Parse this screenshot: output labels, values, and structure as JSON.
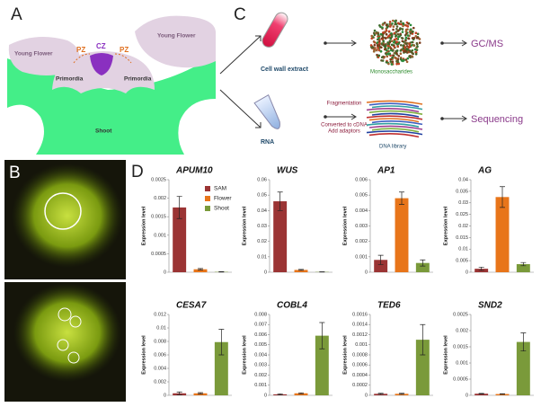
{
  "panels": {
    "a": "A",
    "b": "B",
    "c": "C",
    "d": "D"
  },
  "diagram_a": {
    "young_flower_left": "Young Flower",
    "young_flower_right": "Young Flower",
    "pz_left": "PZ",
    "pz_right": "PZ",
    "cz": "CZ",
    "primordia_left": "Primordia",
    "primordia_right": "Primordia",
    "shoot": "Shoot"
  },
  "diagram_c": {
    "cell_wall_extract": "Cell wall extract",
    "monosaccharides": "Monosaccharides",
    "gcms": "GC/MS",
    "rna": "RNA",
    "steps": [
      "Fragmentation",
      "Converted to cDNA",
      "Add adaptors"
    ],
    "dna_library": "DNA library",
    "sequencing": "Sequencing"
  },
  "legend": [
    {
      "name": "SAM",
      "color": "#9b3434"
    },
    {
      "name": "Flower",
      "color": "#e8751a"
    },
    {
      "name": "Shoot",
      "color": "#7a9a3a"
    }
  ],
  "chart_data": [
    {
      "type": "bar",
      "title": "APUM10",
      "ylabel": "Expression level",
      "values": [
        0.00175,
        8e-05,
        1e-05
      ],
      "errors": [
        0.0003,
        2e-05,
        5e-06
      ],
      "ylim": [
        0,
        0.0025
      ],
      "yticks": [
        0,
        0.0005,
        0.001,
        0.0015,
        0.002,
        0.0025
      ]
    },
    {
      "type": "bar",
      "title": "WUS",
      "ylabel": "Expression level",
      "values": [
        0.046,
        0.0015,
        0.0002
      ],
      "errors": [
        0.006,
        0.0003,
        0.0001
      ],
      "ylim": [
        0,
        0.06
      ],
      "yticks": [
        0,
        0.01,
        0.02,
        0.03,
        0.04,
        0.05,
        0.06
      ]
    },
    {
      "type": "bar",
      "title": "AP1",
      "ylabel": "Expression level",
      "values": [
        0.0008,
        0.0048,
        0.0006
      ],
      "errors": [
        0.0003,
        0.0004,
        0.0002
      ],
      "ylim": [
        0,
        0.006
      ],
      "yticks": [
        0,
        0.001,
        0.002,
        0.003,
        0.004,
        0.005,
        0.006
      ]
    },
    {
      "type": "bar",
      "title": "AG",
      "ylabel": "Expression level",
      "values": [
        0.0015,
        0.0325,
        0.0035
      ],
      "errors": [
        0.0007,
        0.0045,
        0.0007
      ],
      "ylim": [
        0,
        0.04
      ],
      "yticks": [
        0,
        0.005,
        0.01,
        0.015,
        0.02,
        0.025,
        0.03,
        0.035,
        0.04
      ]
    },
    {
      "type": "bar",
      "title": "CESA7",
      "ylabel": "Expression level",
      "values": [
        0.0003,
        0.0003,
        0.0079
      ],
      "errors": [
        0.0002,
        0.0001,
        0.0019
      ],
      "ylim": [
        0,
        0.012
      ],
      "yticks": [
        0,
        0.002,
        0.004,
        0.006,
        0.008,
        0.01,
        0.012
      ]
    },
    {
      "type": "bar",
      "title": "COBL4",
      "ylabel": "Expression level",
      "values": [
        0.0001,
        0.0002,
        0.0059
      ],
      "errors": [
        5e-05,
        5e-05,
        0.0013
      ],
      "ylim": [
        0,
        0.008
      ],
      "yticks": [
        0,
        0.001,
        0.002,
        0.003,
        0.004,
        0.005,
        0.006,
        0.007,
        0.008
      ]
    },
    {
      "type": "bar",
      "title": "TED6",
      "ylabel": "Expression level",
      "values": [
        3e-05,
        3e-05,
        0.0011
      ],
      "errors": [
        1e-05,
        1e-05,
        0.0003
      ],
      "ylim": [
        0,
        0.0016
      ],
      "yticks": [
        0,
        0.0002,
        0.0004,
        0.0006,
        0.0008,
        0.001,
        0.0012,
        0.0014,
        0.0016
      ]
    },
    {
      "type": "bar",
      "title": "SND2",
      "ylabel": "Expression level",
      "values": [
        5e-05,
        4e-05,
        0.00165
      ],
      "errors": [
        1e-05,
        1e-05,
        0.00028
      ],
      "ylim": [
        0,
        0.0025
      ],
      "yticks": [
        0,
        0.0005,
        0.001,
        0.0015,
        0.002,
        0.0025
      ]
    }
  ]
}
